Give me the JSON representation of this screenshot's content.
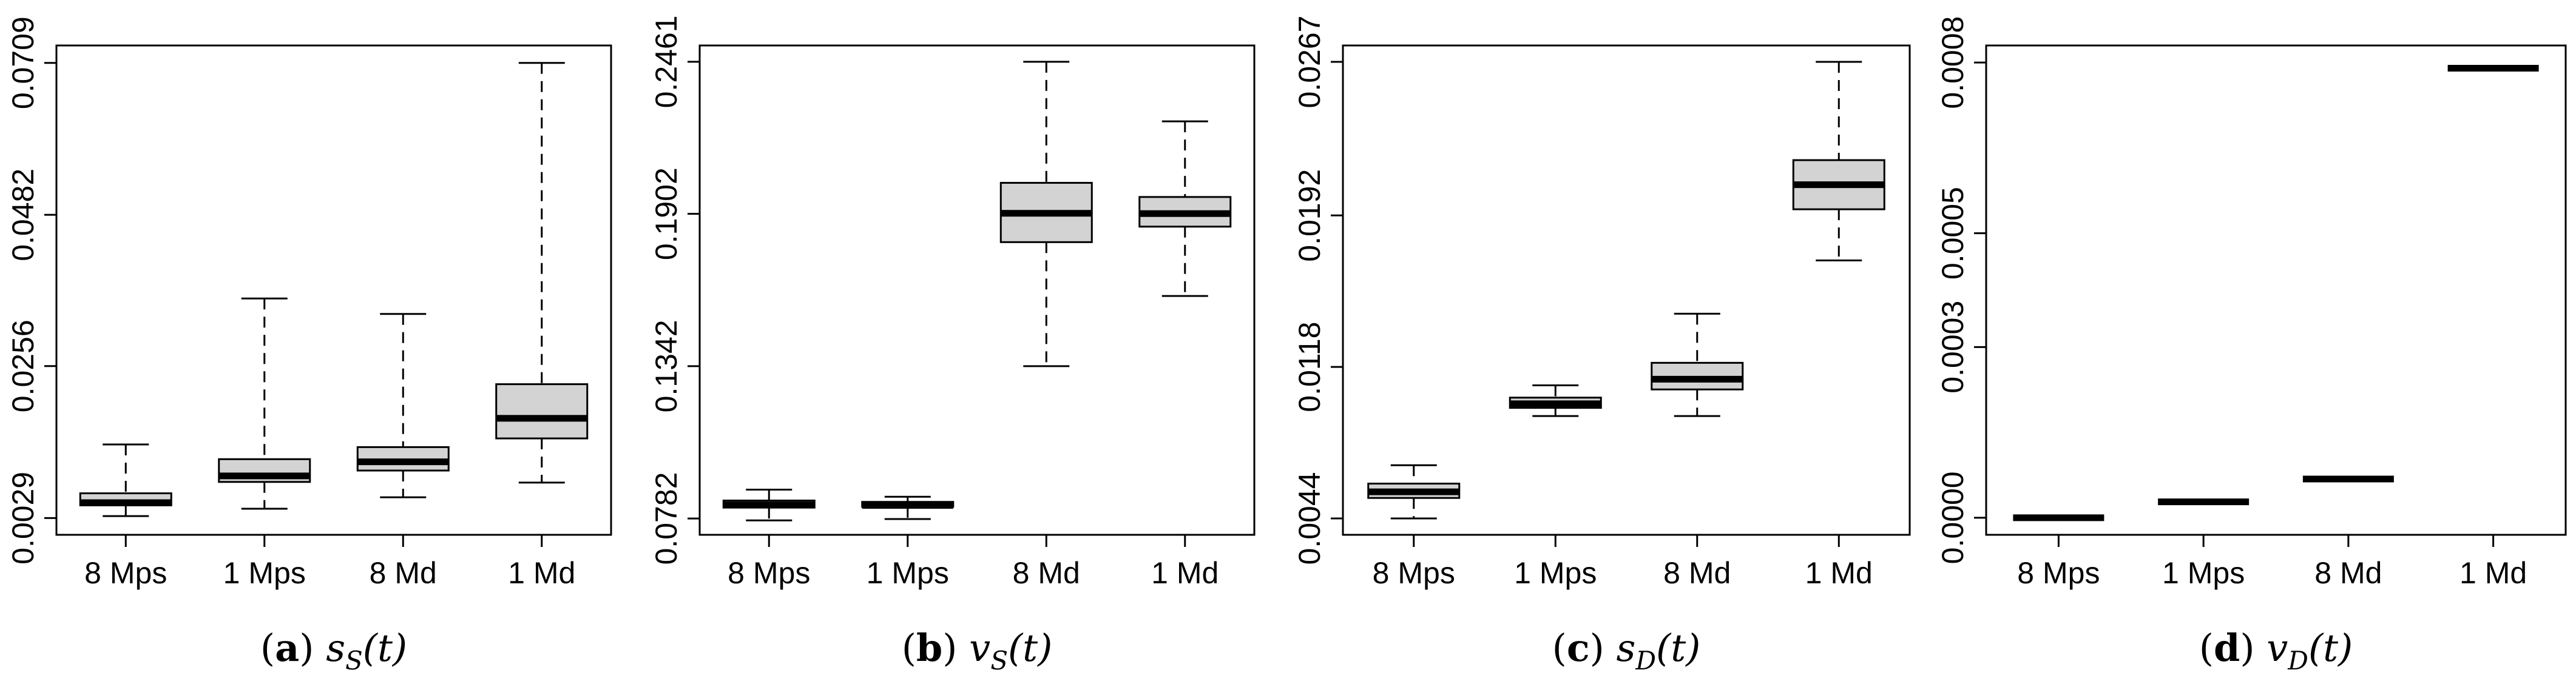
{
  "chart_data": [
    {
      "type": "box",
      "panel": "(a)",
      "caption_letter": "a",
      "caption_math_var": "s",
      "caption_math_sub": "S",
      "caption_math_arg": "(t)",
      "categories": [
        "8 Mps",
        "1 Mps",
        "8 Md",
        "1 Md"
      ],
      "ylim": [
        0.0004,
        0.0735
      ],
      "yticks": [
        0.0029,
        0.0256,
        0.0482,
        0.0709
      ],
      "ytick_labels": [
        "0.0029",
        "0.0256",
        "0.0482",
        "0.0709"
      ],
      "boxes": [
        {
          "label": "8 Mps",
          "whisker_low": 0.0032,
          "q1": 0.0048,
          "median": 0.0052,
          "q3": 0.0066,
          "whisker_high": 0.0139
        },
        {
          "label": "1 Mps",
          "whisker_low": 0.0043,
          "q1": 0.0083,
          "median": 0.0092,
          "q3": 0.0117,
          "whisker_high": 0.0357
        },
        {
          "label": "8 Md",
          "whisker_low": 0.006,
          "q1": 0.01,
          "median": 0.0113,
          "q3": 0.0135,
          "whisker_high": 0.0334
        },
        {
          "label": "1 Md",
          "whisker_low": 0.0082,
          "q1": 0.0148,
          "median": 0.0178,
          "q3": 0.0229,
          "whisker_high": 0.0709
        }
      ]
    },
    {
      "type": "box",
      "panel": "(b)",
      "caption_letter": "b",
      "caption_math_var": "v",
      "caption_math_sub": "S",
      "caption_math_arg": "(t)",
      "categories": [
        "8 Mps",
        "1 Mps",
        "8 Md",
        "1 Md"
      ],
      "ylim": [
        0.0722,
        0.2521
      ],
      "yticks": [
        0.0782,
        0.1342,
        0.1902,
        0.2461
      ],
      "ytick_labels": [
        "0.0782",
        "0.1342",
        "0.1902",
        "0.2461"
      ],
      "boxes": [
        {
          "label": "8 Mps",
          "whisker_low": 0.0775,
          "q1": 0.0822,
          "median": 0.0832,
          "q3": 0.0848,
          "whisker_high": 0.0888
        },
        {
          "label": "1 Mps",
          "whisker_low": 0.078,
          "q1": 0.0825,
          "median": 0.083,
          "q3": 0.0843,
          "whisker_high": 0.0862
        },
        {
          "label": "8 Md",
          "whisker_low": 0.1342,
          "q1": 0.1798,
          "median": 0.1904,
          "q3": 0.2016,
          "whisker_high": 0.2461
        },
        {
          "label": "1 Md",
          "whisker_low": 0.16,
          "q1": 0.1855,
          "median": 0.1903,
          "q3": 0.1964,
          "whisker_high": 0.2242
        }
      ]
    },
    {
      "type": "box",
      "panel": "(c)",
      "caption_letter": "c",
      "caption_math_var": "s",
      "caption_math_sub": "D",
      "caption_math_arg": "(t)",
      "categories": [
        "8 Mps",
        "1 Mps",
        "8 Md",
        "1 Md"
      ],
      "ylim": [
        0.0036,
        0.0275
      ],
      "yticks": [
        0.0044,
        0.0118,
        0.0192,
        0.0267
      ],
      "ytick_labels": [
        "0.0044",
        "0.0118",
        "0.0192",
        "0.0267"
      ],
      "boxes": [
        {
          "label": "8 Mps",
          "whisker_low": 0.0044,
          "q1": 0.0054,
          "median": 0.0057,
          "q3": 0.0061,
          "whisker_high": 0.007
        },
        {
          "label": "1 Mps",
          "whisker_low": 0.0094,
          "q1": 0.0098,
          "median": 0.01,
          "q3": 0.0103,
          "whisker_high": 0.0109
        },
        {
          "label": "8 Md",
          "whisker_low": 0.0094,
          "q1": 0.0107,
          "median": 0.0112,
          "q3": 0.012,
          "whisker_high": 0.0144
        },
        {
          "label": "1 Md",
          "whisker_low": 0.017,
          "q1": 0.0195,
          "median": 0.0207,
          "q3": 0.0219,
          "whisker_high": 0.0267
        }
      ]
    },
    {
      "type": "box",
      "panel": "(d)",
      "caption_letter": "d",
      "caption_math_var": "v",
      "caption_math_sub": "D",
      "caption_math_arg": "(t)",
      "categories": [
        "8 Mps",
        "1 Mps",
        "8 Md",
        "1 Md"
      ],
      "ylim": [
        -3e-05,
        0.00083
      ],
      "yticks": [
        0.0,
        0.0003,
        0.0005,
        0.0008
      ],
      "ytick_labels": [
        "0.0000",
        "0.0003",
        "0.0005",
        "0.0008"
      ],
      "boxes": [
        {
          "label": "8 Mps",
          "whisker_low": 0.0,
          "q1": 0.0,
          "median": 0.0,
          "q3": 0.0,
          "whisker_high": 0.0
        },
        {
          "label": "1 Mps",
          "whisker_low": 2.8e-05,
          "q1": 2.8e-05,
          "median": 2.8e-05,
          "q3": 2.8e-05,
          "whisker_high": 2.8e-05
        },
        {
          "label": "8 Md",
          "whisker_low": 6.8e-05,
          "q1": 6.8e-05,
          "median": 6.8e-05,
          "q3": 6.8e-05,
          "whisker_high": 6.8e-05
        },
        {
          "label": "1 Md",
          "whisker_low": 0.00079,
          "q1": 0.00079,
          "median": 0.00079,
          "q3": 0.00079,
          "whisker_high": 0.00079
        }
      ]
    }
  ],
  "colors": {
    "box_fill": "#d3d3d3",
    "stroke": "#000000"
  }
}
